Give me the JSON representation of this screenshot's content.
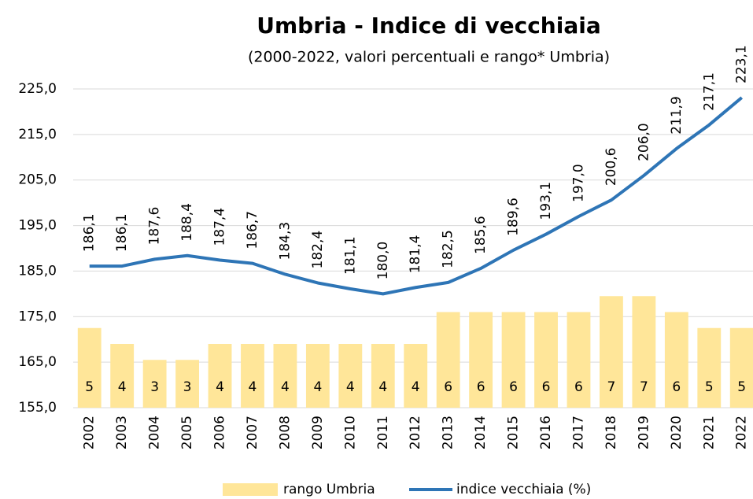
{
  "chart_data": {
    "type": "bar-line",
    "title": "Umbria - Indice di vecchiaia",
    "subtitle": "(2000-2022, valori percentuali e rango* Umbria)",
    "categories": [
      "2002",
      "2003",
      "2004",
      "2005",
      "2006",
      "2007",
      "2008",
      "2009",
      "2010",
      "2011",
      "2012",
      "2013",
      "2014",
      "2015",
      "2016",
      "2017",
      "2018",
      "2019",
      "2020",
      "2021",
      "2022"
    ],
    "series": [
      {
        "name": "rango Umbria",
        "type": "bar",
        "axis": "y2",
        "color": "#ffe699",
        "values": [
          5,
          4,
          3,
          3,
          4,
          4,
          4,
          4,
          4,
          4,
          4,
          6,
          6,
          6,
          6,
          6,
          7,
          7,
          6,
          5,
          5
        ]
      },
      {
        "name": "indice vecchiaia (%)",
        "type": "line",
        "axis": "y",
        "color": "#2e75b6",
        "values": [
          186.1,
          186.1,
          187.6,
          188.4,
          187.4,
          186.7,
          184.3,
          182.4,
          181.1,
          180.0,
          181.4,
          182.5,
          185.6,
          189.6,
          193.1,
          197.0,
          200.6,
          206.0,
          211.9,
          217.1,
          223.1
        ],
        "value_labels": [
          "186,1",
          "186,1",
          "187,6",
          "188,4",
          "187,4",
          "186,7",
          "184,3",
          "182,4",
          "181,1",
          "180,0",
          "181,4",
          "182,5",
          "185,6",
          "189,6",
          "193,1",
          "197,0",
          "200,6",
          "206,0",
          "211,9",
          "217,1",
          "223,1"
        ]
      }
    ],
    "ylim": [
      155,
      225
    ],
    "yticks": [
      {
        "value": 155,
        "label": "155,0"
      },
      {
        "value": 165,
        "label": "165,0"
      },
      {
        "value": 175,
        "label": "175,0"
      },
      {
        "value": 185,
        "label": "185,0"
      },
      {
        "value": 195,
        "label": "195,0"
      },
      {
        "value": 205,
        "label": "205,0"
      },
      {
        "value": 215,
        "label": "215,0"
      },
      {
        "value": 225,
        "label": "225,0"
      }
    ],
    "y2lim": [
      0,
      20
    ],
    "grid": true,
    "legend": "bottom"
  }
}
